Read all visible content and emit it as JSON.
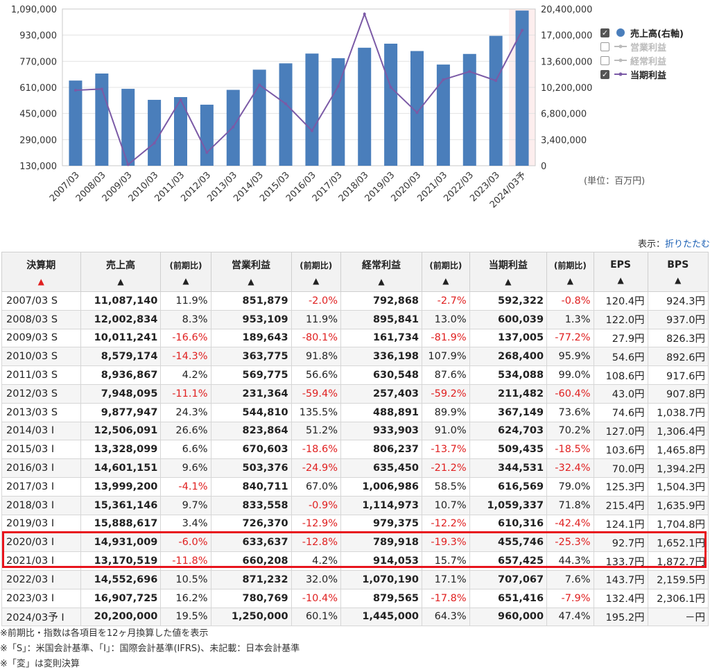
{
  "chart_data": {
    "type": "bar+line",
    "categories": [
      "2007/03",
      "2008/03",
      "2009/03",
      "2010/03",
      "2011/03",
      "2012/03",
      "2013/03",
      "2014/03",
      "2015/03",
      "2016/03",
      "2017/03",
      "2018/03",
      "2019/03",
      "2020/03",
      "2021/03",
      "2022/03",
      "2023/03",
      "2024/03予"
    ],
    "left_axis": {
      "ticks": [
        "1,090,000",
        "930,000",
        "770,000",
        "610,000",
        "450,000",
        "290,000",
        "130,000"
      ],
      "range": [
        130000,
        1090000
      ]
    },
    "right_axis": {
      "ticks": [
        "20,400,000",
        "17,000,000",
        "13,600,000",
        "10,200,000",
        "6,800,000",
        "3,400,000",
        "0"
      ],
      "range": [
        0,
        20400000
      ]
    },
    "series": [
      {
        "name": "売上高(右軸)",
        "type": "bar",
        "axis": "right",
        "color": "#4a7ebb",
        "values": [
          11087140,
          12002834,
          10011241,
          8579174,
          8936867,
          7948095,
          9877947,
          12506091,
          13328099,
          14601151,
          13999200,
          15361146,
          15888617,
          14931009,
          13170519,
          14552696,
          16907725,
          20200000
        ]
      },
      {
        "name": "当期利益",
        "type": "line",
        "axis": "left",
        "color": "#7b5aa6",
        "values": [
          592322,
          600039,
          137005,
          268400,
          534088,
          211482,
          367149,
          624703,
          509435,
          344531,
          616569,
          1059337,
          610316,
          455746,
          657425,
          707067,
          651416,
          960000
        ]
      }
    ]
  },
  "legend": [
    {
      "label": "売上高(右軸)",
      "checked": true,
      "symbol": "dot",
      "color": "#4a7ebb",
      "active": true
    },
    {
      "label": "営業利益",
      "checked": false,
      "symbol": "line",
      "color": "#bbbbbb",
      "active": false
    },
    {
      "label": "経常利益",
      "checked": false,
      "symbol": "line",
      "color": "#bbbbbb",
      "active": false
    },
    {
      "label": "当期利益",
      "checked": true,
      "symbol": "line",
      "color": "#7b5aa6",
      "active": true
    }
  ],
  "unit_label": "(単位：百万円)",
  "display": {
    "label": "表示：",
    "link": "折りたたむ"
  },
  "table": {
    "headers": [
      {
        "label": "決算期",
        "arrow": "▲",
        "arrow_color": "red"
      },
      {
        "label": "売上高",
        "arrow": "▲"
      },
      {
        "label": "(前期比)",
        "arrow": "▲",
        "small": true
      },
      {
        "label": "営業利益",
        "arrow": "▲"
      },
      {
        "label": "(前期比)",
        "arrow": "▲",
        "small": true
      },
      {
        "label": "経常利益",
        "arrow": "▲"
      },
      {
        "label": "(前期比)",
        "arrow": "▲",
        "small": true
      },
      {
        "label": "当期利益",
        "arrow": "▲"
      },
      {
        "label": "(前期比)",
        "arrow": "▲",
        "small": true
      },
      {
        "label": "EPS",
        "arrow": "▲"
      },
      {
        "label": "BPS",
        "arrow": "▲"
      }
    ],
    "rows": [
      [
        "2007/03 S",
        "11,087,140",
        "11.9%",
        "851,879",
        "-2.0%",
        "792,868",
        "-2.7%",
        "592,322",
        "-0.8%",
        "120.4円",
        "924.3円"
      ],
      [
        "2008/03 S",
        "12,002,834",
        "8.3%",
        "953,109",
        "11.9%",
        "895,841",
        "13.0%",
        "600,039",
        "1.3%",
        "122.0円",
        "937.0円"
      ],
      [
        "2009/03 S",
        "10,011,241",
        "-16.6%",
        "189,643",
        "-80.1%",
        "161,734",
        "-81.9%",
        "137,005",
        "-77.2%",
        "27.9円",
        "826.3円"
      ],
      [
        "2010/03 S",
        "8,579,174",
        "-14.3%",
        "363,775",
        "91.8%",
        "336,198",
        "107.9%",
        "268,400",
        "95.9%",
        "54.6円",
        "892.6円"
      ],
      [
        "2011/03 S",
        "8,936,867",
        "4.2%",
        "569,775",
        "56.6%",
        "630,548",
        "87.6%",
        "534,088",
        "99.0%",
        "108.6円",
        "917.6円"
      ],
      [
        "2012/03 S",
        "7,948,095",
        "-11.1%",
        "231,364",
        "-59.4%",
        "257,403",
        "-59.2%",
        "211,482",
        "-60.4%",
        "43.0円",
        "907.8円"
      ],
      [
        "2013/03 S",
        "9,877,947",
        "24.3%",
        "544,810",
        "135.5%",
        "488,891",
        "89.9%",
        "367,149",
        "73.6%",
        "74.6円",
        "1,038.7円"
      ],
      [
        "2014/03 I",
        "12,506,091",
        "26.6%",
        "823,864",
        "51.2%",
        "933,903",
        "91.0%",
        "624,703",
        "70.2%",
        "127.0円",
        "1,306.4円"
      ],
      [
        "2015/03 I",
        "13,328,099",
        "6.6%",
        "670,603",
        "-18.6%",
        "806,237",
        "-13.7%",
        "509,435",
        "-18.5%",
        "103.6円",
        "1,465.8円"
      ],
      [
        "2016/03 I",
        "14,601,151",
        "9.6%",
        "503,376",
        "-24.9%",
        "635,450",
        "-21.2%",
        "344,531",
        "-32.4%",
        "70.0円",
        "1,394.2円"
      ],
      [
        "2017/03 I",
        "13,999,200",
        "-4.1%",
        "840,711",
        "67.0%",
        "1,006,986",
        "58.5%",
        "616,569",
        "79.0%",
        "125.3円",
        "1,504.3円"
      ],
      [
        "2018/03 I",
        "15,361,146",
        "9.7%",
        "833,558",
        "-0.9%",
        "1,114,973",
        "10.7%",
        "1,059,337",
        "71.8%",
        "215.4円",
        "1,635.9円"
      ],
      [
        "2019/03 I",
        "15,888,617",
        "3.4%",
        "726,370",
        "-12.9%",
        "979,375",
        "-12.2%",
        "610,316",
        "-42.4%",
        "124.1円",
        "1,704.8円"
      ],
      [
        "2020/03 I",
        "14,931,009",
        "-6.0%",
        "633,637",
        "-12.8%",
        "789,918",
        "-19.3%",
        "455,746",
        "-25.3%",
        "92.7円",
        "1,652.1円"
      ],
      [
        "2021/03 I",
        "13,170,519",
        "-11.8%",
        "660,208",
        "4.2%",
        "914,053",
        "15.7%",
        "657,425",
        "44.3%",
        "133.7円",
        "1,872.7円"
      ],
      [
        "2022/03 I",
        "14,552,696",
        "10.5%",
        "871,232",
        "32.0%",
        "1,070,190",
        "17.1%",
        "707,067",
        "7.6%",
        "143.7円",
        "2,159.5円"
      ],
      [
        "2023/03 I",
        "16,907,725",
        "16.2%",
        "780,769",
        "-10.4%",
        "879,565",
        "-17.8%",
        "651,416",
        "-7.9%",
        "132.4円",
        "2,306.1円"
      ],
      [
        "2024/03予 I",
        "20,200,000",
        "19.5%",
        "1,250,000",
        "60.1%",
        "1,445,000",
        "64.3%",
        "960,000",
        "47.4%",
        "195.2円",
        "－円"
      ]
    ]
  },
  "notes": [
    "※前期比・指数は各項目を12ヶ月換算した値を表示",
    "※「S」：米国会計基準、「I」：国際会計基準(IFRS)、未記載：日本会計基準",
    "※「変」は変則決算"
  ]
}
